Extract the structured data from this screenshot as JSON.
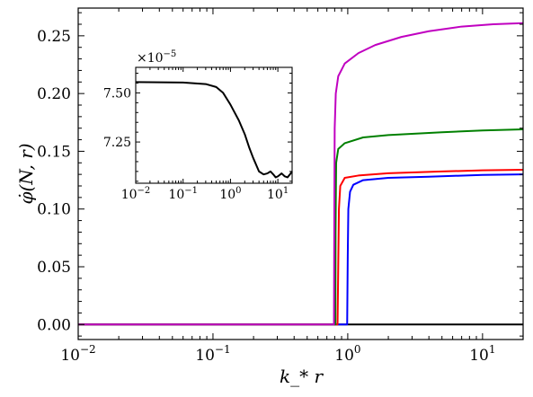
{
  "chart_data": [
    {
      "type": "line",
      "xscale": "log",
      "xlabel": "k_* r",
      "ylabel": "φ̇(N, r)",
      "xlim": [
        0.01,
        20
      ],
      "ylim": [
        -0.013,
        0.274
      ],
      "x_ticks": [
        {
          "value": 0.01,
          "base": "10",
          "exp": "−2"
        },
        {
          "value": 0.1,
          "base": "10",
          "exp": "−1"
        },
        {
          "value": 1,
          "base": "10",
          "exp": "0"
        },
        {
          "value": 10,
          "base": "10",
          "exp": "1"
        }
      ],
      "y_ticks": [
        {
          "value": 0.0,
          "label": "0.00"
        },
        {
          "value": 0.05,
          "label": "0.05"
        },
        {
          "value": 0.1,
          "label": "0.10"
        },
        {
          "value": 0.15,
          "label": "0.15"
        },
        {
          "value": 0.2,
          "label": "0.20"
        },
        {
          "value": 0.25,
          "label": "0.25"
        }
      ],
      "grid": false,
      "series": [
        {
          "color": "#000000",
          "points": [
            [
              0.01,
              0.0
            ],
            [
              1,
              0.0
            ],
            [
              20,
              0.0
            ]
          ]
        },
        {
          "color": "#0000ff",
          "points": [
            [
              0.01,
              0.0
            ],
            [
              0.99,
              0.0
            ],
            [
              1.0,
              0.06
            ],
            [
              1.01,
              0.1
            ],
            [
              1.04,
              0.115
            ],
            [
              1.1,
              0.121
            ],
            [
              1.3,
              0.125
            ],
            [
              2,
              0.127
            ],
            [
              4,
              0.128
            ],
            [
              10,
              0.1295
            ],
            [
              20,
              0.13
            ]
          ]
        },
        {
          "color": "#ff0000",
          "points": [
            [
              0.01,
              0.0
            ],
            [
              0.84,
              0.0
            ],
            [
              0.85,
              0.05
            ],
            [
              0.86,
              0.1
            ],
            [
              0.88,
              0.12
            ],
            [
              0.95,
              0.127
            ],
            [
              1.2,
              0.129
            ],
            [
              2,
              0.131
            ],
            [
              5,
              0.1325
            ],
            [
              10,
              0.1335
            ],
            [
              20,
              0.134
            ]
          ]
        },
        {
          "color": "#008000",
          "points": [
            [
              0.01,
              0.0
            ],
            [
              0.81,
              0.0
            ],
            [
              0.812,
              0.08
            ],
            [
              0.82,
              0.14
            ],
            [
              0.85,
              0.152
            ],
            [
              0.95,
              0.157
            ],
            [
              1.3,
              0.162
            ],
            [
              2,
              0.164
            ],
            [
              5,
              0.1665
            ],
            [
              10,
              0.168
            ],
            [
              20,
              0.169
            ]
          ]
        },
        {
          "color": "#c000c0",
          "points": [
            [
              0.01,
              0.0
            ],
            [
              0.79,
              0.0
            ],
            [
              0.795,
              0.1
            ],
            [
              0.8,
              0.17
            ],
            [
              0.815,
              0.2
            ],
            [
              0.85,
              0.215
            ],
            [
              0.95,
              0.226
            ],
            [
              1.2,
              0.235
            ],
            [
              1.6,
              0.242
            ],
            [
              2.5,
              0.249
            ],
            [
              4,
              0.254
            ],
            [
              7,
              0.258
            ],
            [
              12,
              0.26
            ],
            [
              20,
              0.261
            ]
          ]
        }
      ]
    },
    {
      "type": "line",
      "xscale": "log",
      "xlim": [
        0.01,
        20
      ],
      "ylim": [
        7.04e-05,
        7.63e-05
      ],
      "y_offset_text": {
        "base": "×10",
        "exp": "−5"
      },
      "x_ticks": [
        {
          "value": 0.01,
          "base": "10",
          "exp": "−2"
        },
        {
          "value": 0.1,
          "base": "10",
          "exp": "−1"
        },
        {
          "value": 1,
          "base": "10",
          "exp": "0"
        },
        {
          "value": 10,
          "base": "10",
          "exp": "1"
        }
      ],
      "y_ticks": [
        {
          "value": 7.25e-05,
          "label": "7.25"
        },
        {
          "value": 7.5e-05,
          "label": "7.50"
        }
      ],
      "series": [
        {
          "color": "#000000",
          "points": [
            [
              0.01,
              7.555e-05
            ],
            [
              0.1,
              7.553e-05
            ],
            [
              0.3,
              7.545e-05
            ],
            [
              0.5,
              7.53e-05
            ],
            [
              0.7,
              7.5e-05
            ],
            [
              1.0,
              7.44e-05
            ],
            [
              1.5,
              7.36e-05
            ],
            [
              2.0,
              7.29e-05
            ],
            [
              2.5,
              7.22e-05
            ],
            [
              3.0,
              7.17e-05
            ],
            [
              4.0,
              7.1e-05
            ],
            [
              5.0,
              7.085e-05
            ],
            [
              6.0,
              7.09e-05
            ],
            [
              7.0,
              7.1e-05
            ],
            [
              8.0,
              7.085e-05
            ],
            [
              9.0,
              7.07e-05
            ],
            [
              10.0,
              7.075e-05
            ],
            [
              12.0,
              7.09e-05
            ],
            [
              14.0,
              7.075e-05
            ],
            [
              16.0,
              7.07e-05
            ],
            [
              18.0,
              7.085e-05
            ],
            [
              20.0,
              7.1e-05
            ]
          ]
        }
      ]
    }
  ]
}
